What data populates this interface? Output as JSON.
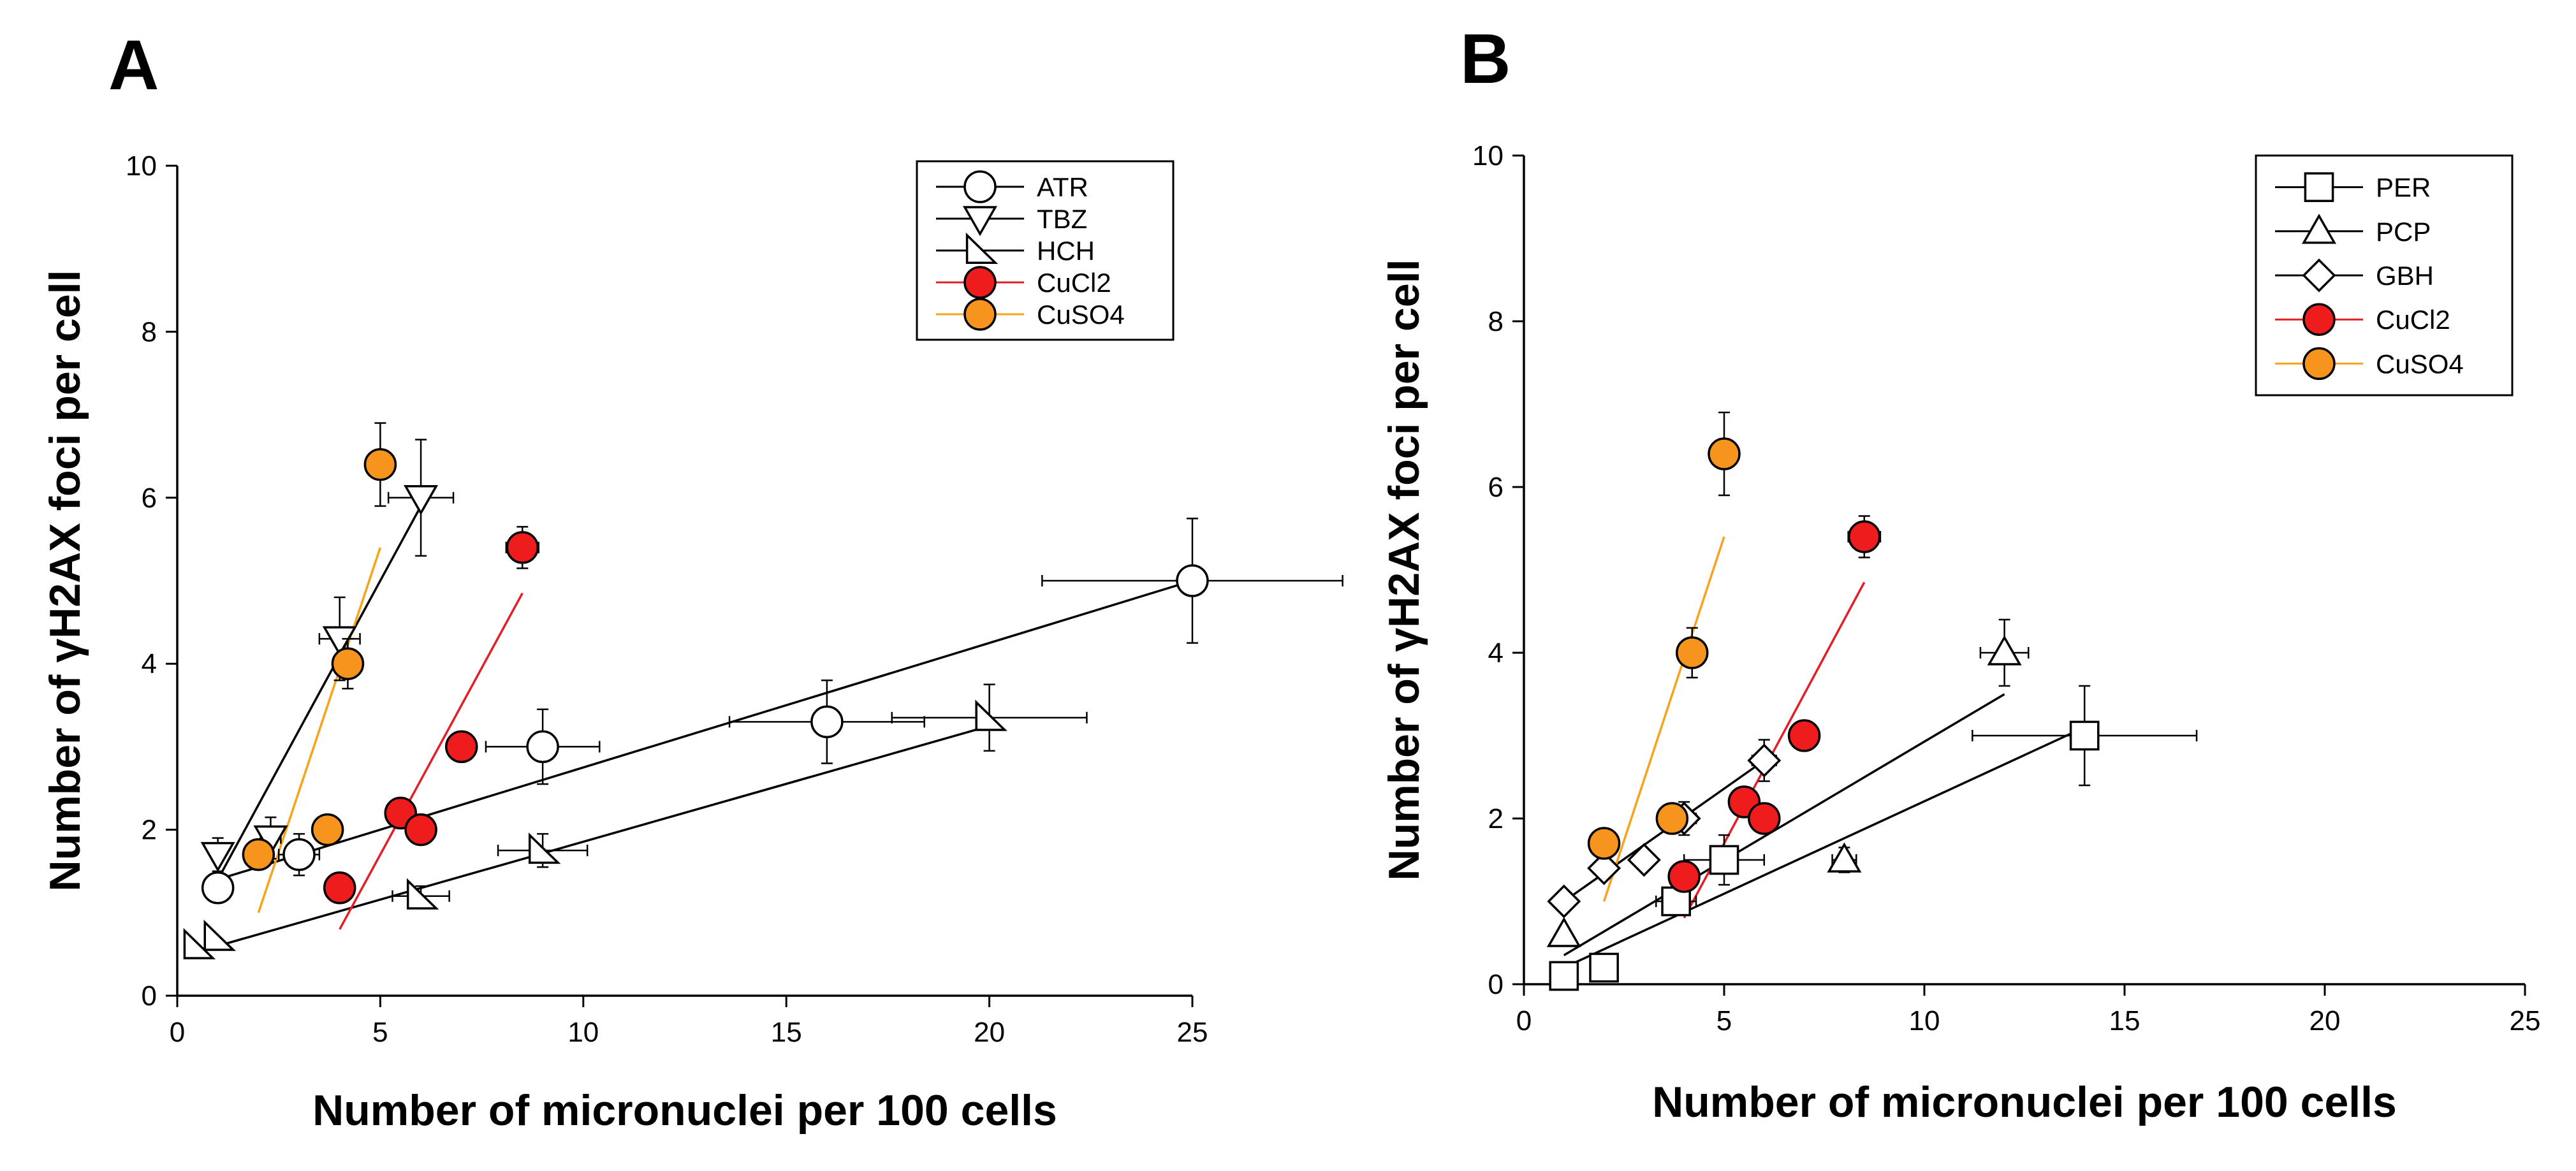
{
  "chart_data": [
    {
      "panel": "A",
      "type": "scatter",
      "xlabel": "Number of micronuclei per 100 cells",
      "ylabel": "Number of γH2AX foci per cell",
      "xlim": [
        0,
        25
      ],
      "ylim": [
        0,
        10
      ],
      "xticks": [
        "0",
        "5",
        "10",
        "15",
        "20",
        "25"
      ],
      "yticks": [
        "0",
        "2",
        "4",
        "6",
        "8",
        "10"
      ],
      "legend_position": "top-right",
      "series": [
        {
          "name": "ATR",
          "marker": "circle",
          "fill": "#ffffff",
          "line_color": "#000000",
          "points": [
            {
              "x": 1,
              "y": 1.3,
              "xerr": 0,
              "yerr": 0.15
            },
            {
              "x": 3,
              "y": 1.7,
              "xerr": 0.5,
              "yerr": 0.25
            },
            {
              "x": 9,
              "y": 3.0,
              "xerr": 1.4,
              "yerr": 0.45
            },
            {
              "x": 16,
              "y": 3.3,
              "xerr": 2.4,
              "yerr": 0.5
            },
            {
              "x": 25,
              "y": 5.0,
              "xerr": 3.7,
              "yerr": 0.75
            }
          ],
          "fit": [
            [
              1,
              1.4
            ],
            [
              25,
              5.0
            ]
          ]
        },
        {
          "name": "TBZ",
          "marker": "triangle-down",
          "fill": "#ffffff",
          "line_color": "#000000",
          "points": [
            {
              "x": 1,
              "y": 1.7,
              "xerr": 0,
              "yerr": 0.2
            },
            {
              "x": 2.3,
              "y": 1.9,
              "xerr": 0.25,
              "yerr": 0.25
            },
            {
              "x": 4,
              "y": 4.3,
              "xerr": 0.5,
              "yerr": 0.5
            },
            {
              "x": 6,
              "y": 6.0,
              "xerr": 0.8,
              "yerr": 0.7
            }
          ],
          "fit": [
            [
              1,
              1.4
            ],
            [
              6,
              5.9
            ]
          ]
        },
        {
          "name": "HCH",
          "marker": "triangle-right",
          "fill": "#ffffff",
          "line_color": "#000000",
          "points": [
            {
              "x": 0.5,
              "y": 0.6,
              "xerr": 0,
              "yerr": 0
            },
            {
              "x": 1,
              "y": 0.7,
              "xerr": 0,
              "yerr": 0
            },
            {
              "x": 6,
              "y": 1.2,
              "xerr": 0.7,
              "yerr": 0.12
            },
            {
              "x": 9,
              "y": 1.75,
              "xerr": 1.1,
              "yerr": 0.2
            },
            {
              "x": 20,
              "y": 3.35,
              "xerr": 2.4,
              "yerr": 0.4
            }
          ],
          "fit": [
            [
              1,
              0.6
            ],
            [
              20,
              3.25
            ]
          ]
        },
        {
          "name": "CuCl2",
          "marker": "circle",
          "fill": "#ee1c1c",
          "line_color": "#e21f26",
          "points": [
            {
              "x": 4,
              "y": 1.3,
              "xerr": 0,
              "yerr": 0
            },
            {
              "x": 5.5,
              "y": 2.2,
              "xerr": 0.25,
              "yerr": 0.1
            },
            {
              "x": 6,
              "y": 2.0,
              "xerr": 0.3,
              "yerr": 0.1
            },
            {
              "x": 7,
              "y": 3.0,
              "xerr": 0.35,
              "yerr": 0.15
            },
            {
              "x": 8.5,
              "y": 5.4,
              "xerr": 0.4,
              "yerr": 0.25
            }
          ],
          "fit": [
            [
              4,
              0.8
            ],
            [
              8.5,
              4.85
            ]
          ]
        },
        {
          "name": "CuSO4",
          "marker": "circle",
          "fill": "#f7941d",
          "line_color": "#f7a21b",
          "points": [
            {
              "x": 2,
              "y": 1.7,
              "xerr": 0,
              "yerr": 0.1
            },
            {
              "x": 3.7,
              "y": 2.0,
              "xerr": 0,
              "yerr": 0.15
            },
            {
              "x": 4.2,
              "y": 4.0,
              "xerr": 0,
              "yerr": 0.3
            },
            {
              "x": 5,
              "y": 6.4,
              "xerr": 0,
              "yerr": 0.5
            }
          ],
          "fit": [
            [
              2,
              1.0
            ],
            [
              5,
              5.4
            ]
          ]
        }
      ]
    },
    {
      "panel": "B",
      "type": "scatter",
      "xlabel": "Number of micronuclei per 100 cells",
      "ylabel": "Number of γH2AX foci per cell",
      "xlim": [
        0,
        25
      ],
      "ylim": [
        0,
        10
      ],
      "xticks": [
        "0",
        "5",
        "10",
        "15",
        "20",
        "25"
      ],
      "yticks": [
        "0",
        "2",
        "4",
        "6",
        "8",
        "10"
      ],
      "legend_position": "top-right",
      "series": [
        {
          "name": "PER",
          "marker": "square",
          "fill": "#ffffff",
          "line_color": "#000000",
          "points": [
            {
              "x": 1,
              "y": 0.1,
              "xerr": 0,
              "yerr": 0.08
            },
            {
              "x": 2,
              "y": 0.2,
              "xerr": 0.3,
              "yerr": 0.08
            },
            {
              "x": 3.8,
              "y": 1.0,
              "xerr": 0.5,
              "yerr": 0.15
            },
            {
              "x": 5,
              "y": 1.5,
              "xerr": 1.0,
              "yerr": 0.3
            },
            {
              "x": 14,
              "y": 3.0,
              "xerr": 2.8,
              "yerr": 0.6
            }
          ],
          "fit": [
            [
              1,
              0.2
            ],
            [
              14,
              3.1
            ]
          ]
        },
        {
          "name": "PCP",
          "marker": "triangle-up",
          "fill": "#ffffff",
          "line_color": "#000000",
          "points": [
            {
              "x": 1,
              "y": 0.6,
              "xerr": 0,
              "yerr": 0.05
            },
            {
              "x": 8,
              "y": 1.5,
              "xerr": 0.3,
              "yerr": 0.15
            },
            {
              "x": 12,
              "y": 4.0,
              "xerr": 0.6,
              "yerr": 0.4
            }
          ],
          "fit": [
            [
              1,
              0.35
            ],
            [
              12,
              3.5
            ]
          ]
        },
        {
          "name": "GBH",
          "marker": "diamond",
          "fill": "#ffffff",
          "line_color": "#000000",
          "points": [
            {
              "x": 1,
              "y": 1.0,
              "xerr": 0,
              "yerr": 0.05
            },
            {
              "x": 2,
              "y": 1.4,
              "xerr": 0.25,
              "yerr": 0.1
            },
            {
              "x": 3,
              "y": 1.5,
              "xerr": 0.25,
              "yerr": 0.1
            },
            {
              "x": 4,
              "y": 2.0,
              "xerr": 0.3,
              "yerr": 0.2
            },
            {
              "x": 6,
              "y": 2.7,
              "xerr": 0.3,
              "yerr": 0.25
            }
          ],
          "fit": [
            [
              1,
              1.0
            ],
            [
              6,
              2.7
            ]
          ]
        },
        {
          "name": "CuCl2",
          "marker": "circle",
          "fill": "#ee1c1c",
          "line_color": "#e21f26",
          "points": [
            {
              "x": 4,
              "y": 1.3,
              "xerr": 0,
              "yerr": 0
            },
            {
              "x": 5.5,
              "y": 2.2,
              "xerr": 0.25,
              "yerr": 0.1
            },
            {
              "x": 6,
              "y": 2.0,
              "xerr": 0.3,
              "yerr": 0.1
            },
            {
              "x": 7,
              "y": 3.0,
              "xerr": 0.35,
              "yerr": 0.15
            },
            {
              "x": 8.5,
              "y": 5.4,
              "xerr": 0.4,
              "yerr": 0.25
            }
          ],
          "fit": [
            [
              4,
              0.8
            ],
            [
              8.5,
              4.85
            ]
          ]
        },
        {
          "name": "CuSO4",
          "marker": "circle",
          "fill": "#f7941d",
          "line_color": "#f7a21b",
          "points": [
            {
              "x": 2,
              "y": 1.7,
              "xerr": 0,
              "yerr": 0.1
            },
            {
              "x": 3.7,
              "y": 2.0,
              "xerr": 0,
              "yerr": 0.15
            },
            {
              "x": 4.2,
              "y": 4.0,
              "xerr": 0,
              "yerr": 0.3
            },
            {
              "x": 5,
              "y": 6.4,
              "xerr": 0,
              "yerr": 0.5
            }
          ],
          "fit": [
            [
              2,
              1.0
            ],
            [
              5,
              5.4
            ]
          ]
        }
      ]
    }
  ]
}
